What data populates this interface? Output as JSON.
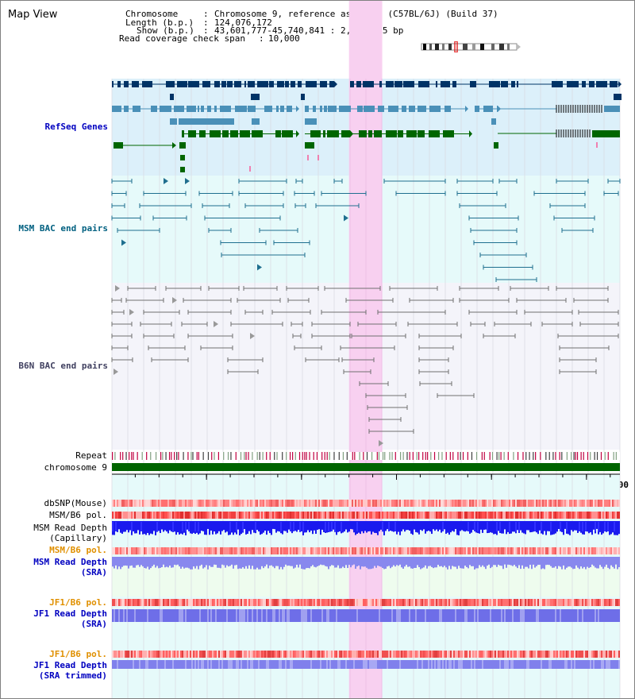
{
  "page": {
    "title": "Map View"
  },
  "header": {
    "rows": [
      {
        "key": "Chromosome",
        "value": "Chromosome 9, reference assembly (C57BL/6J) (Build 37)"
      },
      {
        "key": "Length (b.p.)",
        "value": "124,076,172"
      },
      {
        "key": "Show (b.p.)",
        "value": "43,601,777-45,740,841 : 2,139,065 bp"
      },
      {
        "key": "Read coverage check span",
        "value": "10,000"
      }
    ]
  },
  "axis": {
    "range": [
      43601777,
      45740841
    ],
    "ticks": [
      "44000000",
      "44400000",
      "44800000",
      "45200000",
      "45600000"
    ],
    "tick_values": [
      44000000,
      44400000,
      44800000,
      45200000,
      45600000
    ]
  },
  "highlight": {
    "start": 44600000,
    "end": 44740000
  },
  "tracks": {
    "refseq": "RefSeq Genes",
    "msm_bac": "MSM BAC end pairs",
    "b6n_bac": "B6N BAC end pairs",
    "repeat": "Repeat",
    "chromosome": "chromosome 9",
    "dbsnp": "dbSNP(Mouse)",
    "msm_b6_pol_1": "MSM/B6 pol.",
    "msm_read_depth_cap_1": "MSM Read Depth",
    "msm_read_depth_cap_2": "(Capillary)",
    "msm_b6_pol_2": "MSM/B6 pol.",
    "msm_read_depth_sra_1": "MSM Read Depth",
    "msm_read_depth_sra_2": "(SRA)",
    "jf1_b6_pol_1": "JF1/B6 pol.",
    "jf1_read_depth_sra_1": "JF1 Read Depth",
    "jf1_read_depth_sra_2": "(SRA)",
    "jf1_b6_pol_2": "JF1/B6 pol.",
    "jf1_read_depth_trim_1": "JF1 Read Depth",
    "jf1_read_depth_trim_2": "(SRA trimmed)"
  },
  "colors": {
    "refseq_label": "#0000c0",
    "msm_bac_label": "#006080",
    "b6n_bac_label": "#404060",
    "orange_label": "#e09000",
    "blue_label": "#0000c0",
    "refseq_bg": "#dcf0fa",
    "msm_bg": "#e6fafa",
    "b6n_bg": "#f4f4fa",
    "highlight": "#f8d0f0",
    "gene_dark": "#003366",
    "gene_mid": "#4a90b8",
    "gene_green": "#006600",
    "chrom_green": "#006400"
  }
}
